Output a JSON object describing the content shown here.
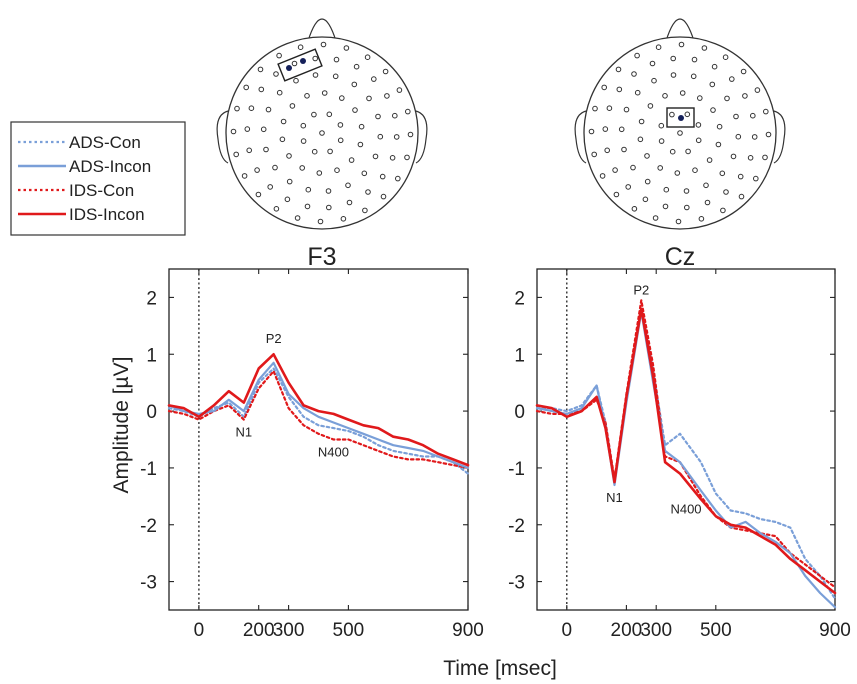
{
  "xlabel": "Time [msec]",
  "ylabel": "Amplitude [µV]",
  "colors": {
    "ads": "#7a9fd8",
    "ids": "#e0191b"
  },
  "legend": {
    "entries": [
      {
        "label": "ADS-Con",
        "color": "#7a9fd8",
        "dash": "dotted"
      },
      {
        "label": "ADS-Incon",
        "color": "#7a9fd8",
        "dash": "solid"
      },
      {
        "label": "IDS-Con",
        "color": "#e0191b",
        "dash": "dotted"
      },
      {
        "label": "IDS-Incon",
        "color": "#e0191b",
        "dash": "solid"
      }
    ]
  },
  "chart_data": [
    {
      "type": "line",
      "title": "F3",
      "xlim": [
        -100,
        900
      ],
      "ylim": [
        -3.5,
        2.5
      ],
      "x_ticks": [
        0,
        200,
        300,
        500,
        900
      ],
      "y_ticks": [
        2,
        1,
        0,
        -1,
        -2,
        -3
      ],
      "stimulus_onset": 0,
      "annotations": [
        {
          "text": "P2",
          "x": 250,
          "y": 1.2
        },
        {
          "text": "N1",
          "x": 150,
          "y": -0.45
        },
        {
          "text": "N400",
          "x": 450,
          "y": -0.8
        }
      ],
      "x": [
        -100,
        -50,
        0,
        50,
        100,
        150,
        200,
        250,
        300,
        350,
        400,
        450,
        500,
        550,
        600,
        650,
        700,
        750,
        800,
        850,
        900
      ],
      "series": [
        {
          "name": "ADS-Con",
          "values": [
            0.05,
            0.0,
            -0.1,
            0.05,
            0.15,
            -0.1,
            0.5,
            0.75,
            0.25,
            -0.1,
            -0.25,
            -0.3,
            -0.35,
            -0.45,
            -0.6,
            -0.7,
            -0.75,
            -0.8,
            -0.8,
            -0.9,
            -1.1
          ]
        },
        {
          "name": "ADS-Incon",
          "values": [
            0.1,
            0.0,
            -0.05,
            0.0,
            0.2,
            0.0,
            0.55,
            0.85,
            0.3,
            0.05,
            -0.1,
            -0.2,
            -0.3,
            -0.4,
            -0.5,
            -0.6,
            -0.65,
            -0.7,
            -0.8,
            -0.9,
            -1.0
          ]
        },
        {
          "name": "IDS-Con",
          "values": [
            0.0,
            -0.05,
            -0.15,
            0.0,
            0.1,
            -0.15,
            0.4,
            0.7,
            0.05,
            -0.25,
            -0.4,
            -0.5,
            -0.5,
            -0.6,
            -0.7,
            -0.8,
            -0.85,
            -0.85,
            -0.9,
            -0.95,
            -1.0
          ]
        },
        {
          "name": "IDS-Incon",
          "values": [
            0.1,
            0.05,
            -0.1,
            0.1,
            0.35,
            0.15,
            0.75,
            1.0,
            0.5,
            0.1,
            0.0,
            -0.05,
            -0.15,
            -0.25,
            -0.3,
            -0.45,
            -0.5,
            -0.6,
            -0.75,
            -0.85,
            -0.95
          ]
        }
      ]
    },
    {
      "type": "line",
      "title": "Cz",
      "xlim": [
        -100,
        900
      ],
      "ylim": [
        -3.5,
        2.5
      ],
      "x_ticks": [
        0,
        200,
        300,
        500,
        900
      ],
      "y_ticks": [
        2,
        1,
        0,
        -1,
        -2,
        -3
      ],
      "stimulus_onset": 0,
      "annotations": [
        {
          "text": "P2",
          "x": 250,
          "y": 2.05
        },
        {
          "text": "N1",
          "x": 160,
          "y": -1.6
        },
        {
          "text": "N400",
          "x": 400,
          "y": -1.8
        }
      ],
      "x": [
        -100,
        -50,
        0,
        50,
        100,
        130,
        160,
        200,
        250,
        290,
        330,
        380,
        450,
        500,
        550,
        600,
        650,
        700,
        750,
        800,
        850,
        900
      ],
      "series": [
        {
          "name": "ADS-Con",
          "values": [
            0.05,
            0.05,
            0.0,
            0.1,
            0.45,
            -0.2,
            -1.25,
            0.2,
            1.8,
            0.7,
            -0.6,
            -0.4,
            -0.9,
            -1.45,
            -1.75,
            -1.8,
            -1.9,
            -1.95,
            -2.05,
            -2.6,
            -2.9,
            -3.3
          ]
        },
        {
          "name": "ADS-Incon",
          "values": [
            0.05,
            0.0,
            -0.05,
            0.05,
            0.45,
            -0.3,
            -1.3,
            0.15,
            1.75,
            0.5,
            -0.7,
            -0.9,
            -1.4,
            -1.75,
            -2.05,
            -1.95,
            -2.15,
            -2.3,
            -2.5,
            -2.9,
            -3.2,
            -3.45
          ]
        },
        {
          "name": "IDS-Con",
          "values": [
            0.0,
            -0.05,
            -0.05,
            0.0,
            0.2,
            -0.2,
            -1.2,
            0.3,
            1.95,
            0.8,
            -0.8,
            -0.9,
            -1.5,
            -1.85,
            -2.05,
            -2.1,
            -2.15,
            -2.2,
            -2.5,
            -2.7,
            -2.9,
            -3.1
          ]
        },
        {
          "name": "IDS-Incon",
          "values": [
            0.1,
            0.05,
            -0.1,
            0.0,
            0.25,
            -0.3,
            -1.25,
            0.25,
            1.8,
            0.6,
            -0.9,
            -1.1,
            -1.55,
            -1.85,
            -2.0,
            -2.05,
            -2.2,
            -2.35,
            -2.6,
            -2.8,
            -3.0,
            -3.2
          ]
        }
      ]
    }
  ]
}
